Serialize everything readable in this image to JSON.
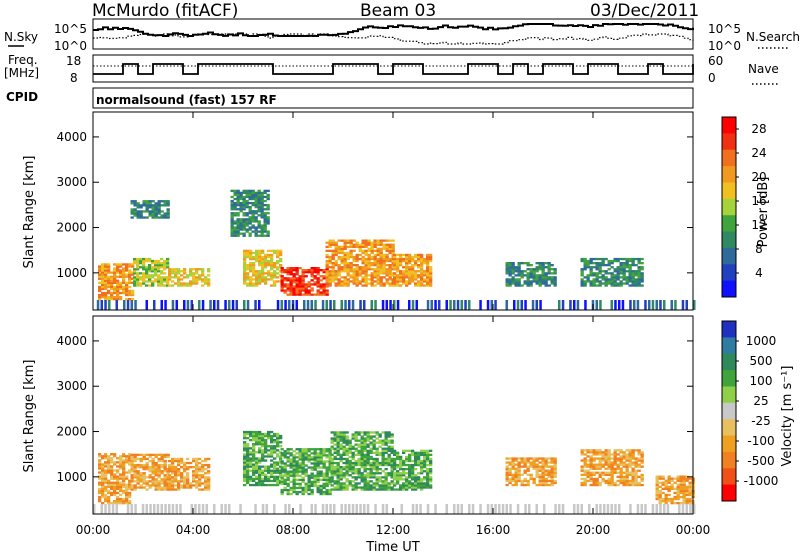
{
  "header": {
    "station": "McMurdo (fitACF)",
    "beam": "Beam 03",
    "date": "03/Dec/2011"
  },
  "top_panels": {
    "nsky_label": "N.Sky",
    "nsearch_label": "N.Search",
    "freq_label_1": "Freq.",
    "freq_label_2": "[MHz]",
    "nave_label": "Nave",
    "cpid_label": "CPID",
    "noise_ticks": [
      "10^5",
      "10^0"
    ],
    "freq_ticks": [
      "18",
      "8"
    ],
    "nave_ticks": [
      "60",
      "0"
    ],
    "cpid_text": "normalsound (fast) 157 RF"
  },
  "colors": {
    "power_scale": [
      "#1010ff",
      "#2040c0",
      "#2e6a9a",
      "#2f8a64",
      "#3fa43c",
      "#a6d23a",
      "#f0c020",
      "#f09a20",
      "#f07020",
      "#f03010",
      "#ff0000"
    ],
    "velocity_scale": [
      "#2030c0",
      "#2e7da0",
      "#2e8a5a",
      "#3fa43c",
      "#8fd04a",
      "#c8c8c8",
      "#e8c060",
      "#f0a020",
      "#f08020",
      "#f05018",
      "#ff0000"
    ]
  },
  "chart_data": [
    {
      "type": "heatmap",
      "name": "power",
      "ylabel": "Slant Range [km]",
      "yticks": [
        "1000",
        "2000",
        "3000",
        "4000"
      ],
      "ylim": [
        180,
        4550
      ],
      "colorbar_label": "Power [dB]",
      "colorbar_ticks": [
        "4",
        "8",
        "12",
        "16",
        "20",
        "24",
        "28"
      ],
      "colorbar_range": [
        0,
        30
      ],
      "xlim": [
        0,
        24
      ],
      "echo_regions": [
        {
          "t": [
            0.2,
            1.6
          ],
          "r": [
            400,
            1200
          ],
          "value": 22
        },
        {
          "t": [
            1.6,
            3.0
          ],
          "r": [
            700,
            1300
          ],
          "value": 14
        },
        {
          "t": [
            3.0,
            4.6
          ],
          "r": [
            700,
            1100
          ],
          "value": 18
        },
        {
          "t": [
            6.0,
            7.5
          ],
          "r": [
            700,
            1500
          ],
          "value": 18
        },
        {
          "t": [
            7.5,
            9.3
          ],
          "r": [
            500,
            1100
          ],
          "value": 28
        },
        {
          "t": [
            9.3,
            12.0
          ],
          "r": [
            700,
            1700
          ],
          "value": 22
        },
        {
          "t": [
            12.0,
            13.5
          ],
          "r": [
            700,
            1400
          ],
          "value": 20
        },
        {
          "t": [
            1.5,
            3.0
          ],
          "r": [
            2200,
            2600
          ],
          "value": 10
        },
        {
          "t": [
            5.5,
            7.0
          ],
          "r": [
            1800,
            2800
          ],
          "value": 10
        },
        {
          "t": [
            16.5,
            18.5
          ],
          "r": [
            700,
            1200
          ],
          "value": 8
        },
        {
          "t": [
            19.5,
            22.0
          ],
          "r": [
            700,
            1300
          ],
          "value": 10
        }
      ]
    },
    {
      "type": "heatmap",
      "name": "velocity",
      "ylabel": "Slant Range [km]",
      "yticks": [
        "1000",
        "2000",
        "3000",
        "4000"
      ],
      "ylim": [
        180,
        4550
      ],
      "colorbar_label": "Velocity [m s⁻¹]",
      "colorbar_ticks": [
        "1000",
        "500",
        "100",
        "25",
        "-25",
        "-100",
        "-500",
        "-1000"
      ],
      "xlim": [
        0,
        24
      ],
      "xlabel": "Time UT",
      "xticks": [
        "00:00",
        "04:00",
        "08:00",
        "12:00",
        "16:00",
        "20:00",
        "00:00"
      ],
      "echo_regions": [
        {
          "t": [
            0.2,
            1.5
          ],
          "r": [
            400,
            1500
          ],
          "value": -300
        },
        {
          "t": [
            1.5,
            3.0
          ],
          "r": [
            700,
            1500
          ],
          "value": -200
        },
        {
          "t": [
            3.0,
            4.6
          ],
          "r": [
            700,
            1400
          ],
          "value": -150
        },
        {
          "t": [
            6.0,
            7.5
          ],
          "r": [
            800,
            2000
          ],
          "value": 150
        },
        {
          "t": [
            7.5,
            9.5
          ],
          "r": [
            600,
            1600
          ],
          "value": 200
        },
        {
          "t": [
            9.5,
            12.0
          ],
          "r": [
            700,
            2000
          ],
          "value": 200
        },
        {
          "t": [
            12.0,
            13.5
          ],
          "r": [
            700,
            1600
          ],
          "value": 150
        },
        {
          "t": [
            16.5,
            18.5
          ],
          "r": [
            800,
            1400
          ],
          "value": -300
        },
        {
          "t": [
            19.5,
            22.0
          ],
          "r": [
            800,
            1600
          ],
          "value": -300
        },
        {
          "t": [
            22.5,
            24.0
          ],
          "r": [
            400,
            1000
          ],
          "value": -300
        }
      ]
    }
  ]
}
